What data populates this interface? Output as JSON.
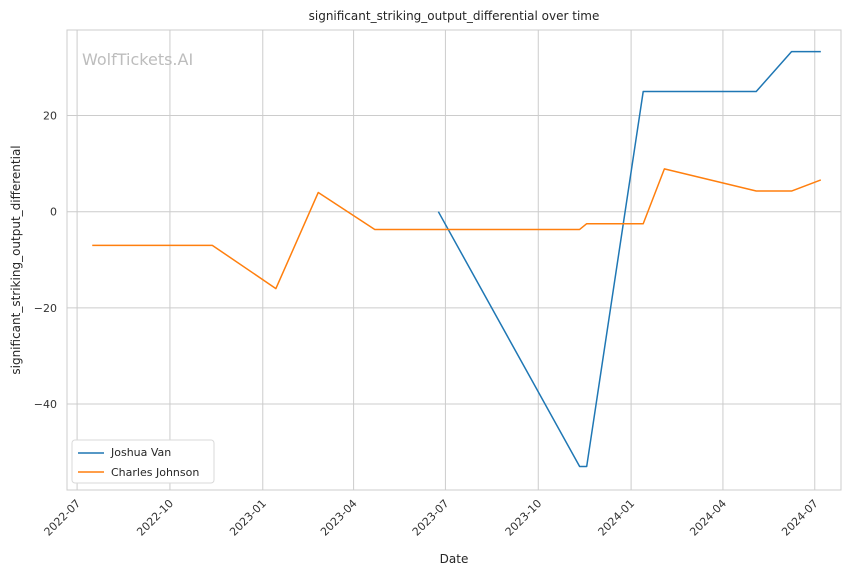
{
  "chart_data": {
    "type": "line",
    "title": "significant_striking_output_differential over time",
    "xlabel": "Date",
    "ylabel": "significant_striking_output_differential",
    "watermark": "WolfTickets.AI",
    "x_ticks": [
      "2022-07",
      "2022-10",
      "2023-01",
      "2023-04",
      "2023-07",
      "2023-10",
      "2024-01",
      "2024-04",
      "2024-07"
    ],
    "y_ticks": [
      20,
      0,
      -20,
      -40
    ],
    "y_tick_labels": [
      "20",
      "0",
      "−20",
      "−40"
    ],
    "xlim": [
      "2022-06-21",
      "2024-07-27"
    ],
    "ylim": [
      -57.9,
      37.8
    ],
    "grid": true,
    "legend_position": "lower-left",
    "series": [
      {
        "name": "Joshua Van",
        "color": "#1f77b4",
        "points": [
          {
            "x": "2023-06-24",
            "y": 0.0
          },
          {
            "x": "2023-11-11",
            "y": -53.0
          },
          {
            "x": "2023-11-18",
            "y": -53.0
          },
          {
            "x": "2024-01-13",
            "y": 25.0
          },
          {
            "x": "2024-05-04",
            "y": 25.0
          },
          {
            "x": "2024-06-08",
            "y": 33.3
          },
          {
            "x": "2024-07-07",
            "y": 33.3
          }
        ]
      },
      {
        "name": "Charles Johnson",
        "color": "#ff7f0e",
        "points": [
          {
            "x": "2022-07-16",
            "y": -7.0
          },
          {
            "x": "2022-11-12",
            "y": -7.0
          },
          {
            "x": "2023-01-14",
            "y": -16.0
          },
          {
            "x": "2023-02-25",
            "y": 4.0
          },
          {
            "x": "2023-04-22",
            "y": -3.7
          },
          {
            "x": "2023-11-11",
            "y": -3.7
          },
          {
            "x": "2023-11-18",
            "y": -2.5
          },
          {
            "x": "2024-01-13",
            "y": -2.5
          },
          {
            "x": "2024-02-03",
            "y": 8.9
          },
          {
            "x": "2024-05-04",
            "y": 4.3
          },
          {
            "x": "2024-06-08",
            "y": 4.3
          },
          {
            "x": "2024-07-07",
            "y": 6.6
          }
        ]
      }
    ]
  }
}
